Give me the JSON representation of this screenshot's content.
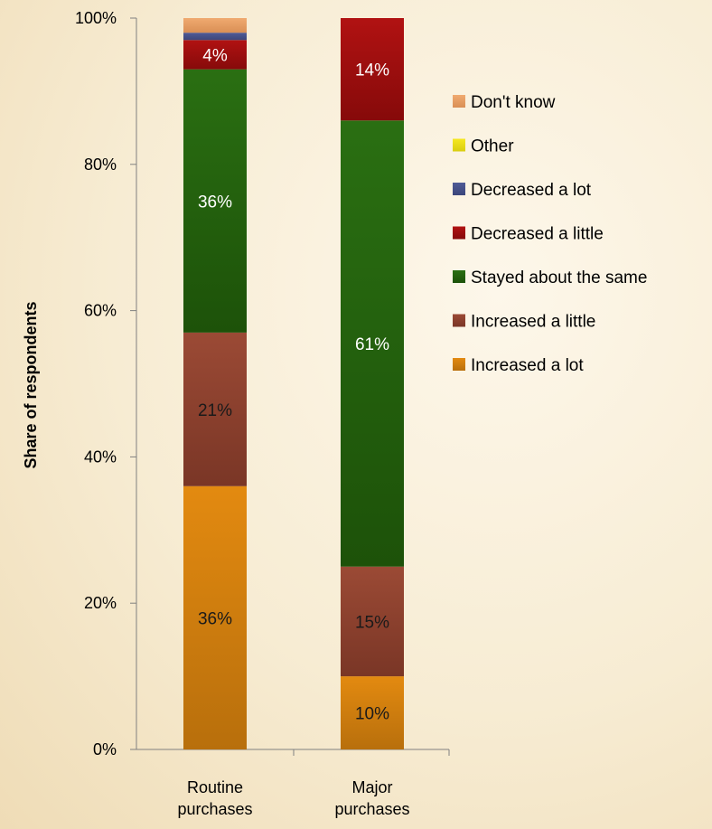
{
  "chart_data": {
    "type": "bar",
    "stacked": true,
    "title": "",
    "xlabel": "",
    "ylabel": "Share of respondents",
    "ylim": [
      0,
      100
    ],
    "yticks": [
      "0%",
      "20%",
      "40%",
      "60%",
      "80%",
      "100%"
    ],
    "ytick_values": [
      0,
      20,
      40,
      60,
      80,
      100
    ],
    "grid": false,
    "legend_position": "right",
    "categories": [
      "Routine purchases",
      "Major purchases"
    ],
    "category_lines": [
      [
        "Routine",
        "purchases"
      ],
      [
        "Major",
        "purchases"
      ]
    ],
    "series": [
      {
        "name": "Increased a lot",
        "values": [
          36,
          10
        ],
        "labels": [
          "36%",
          "10%"
        ],
        "color": "#e38a10",
        "color_dark": "#b86f0c"
      },
      {
        "name": "Increased a little",
        "values": [
          21,
          15
        ],
        "labels": [
          "21%",
          "15%"
        ],
        "color": "#9b4a35",
        "color_dark": "#7a3626"
      },
      {
        "name": "Stayed about the same",
        "values": [
          36,
          61
        ],
        "labels": [
          "36%",
          "61%"
        ],
        "color": "#2a6f12",
        "color_dark": "#1d5209"
      },
      {
        "name": "Decreased a little",
        "values": [
          4,
          14
        ],
        "labels": [
          "4%",
          "14%"
        ],
        "color": "#b11212",
        "color_dark": "#860a0a"
      },
      {
        "name": "Decreased a lot",
        "values": [
          1,
          0
        ],
        "labels": [
          "",
          ""
        ],
        "color": "#4f5a96",
        "color_dark": "#3c467a"
      },
      {
        "name": "Other",
        "values": [
          0,
          0
        ],
        "labels": [
          "",
          ""
        ],
        "color": "#f5e820",
        "color_dark": "#d9cd10"
      },
      {
        "name": "Don't know",
        "values": [
          2,
          0
        ],
        "labels": [
          "",
          ""
        ],
        "color": "#f0aa70",
        "color_dark": "#d98f55"
      }
    ],
    "label_colors": {
      "light": "#ffffff",
      "dark": "#1a1a1a"
    }
  }
}
